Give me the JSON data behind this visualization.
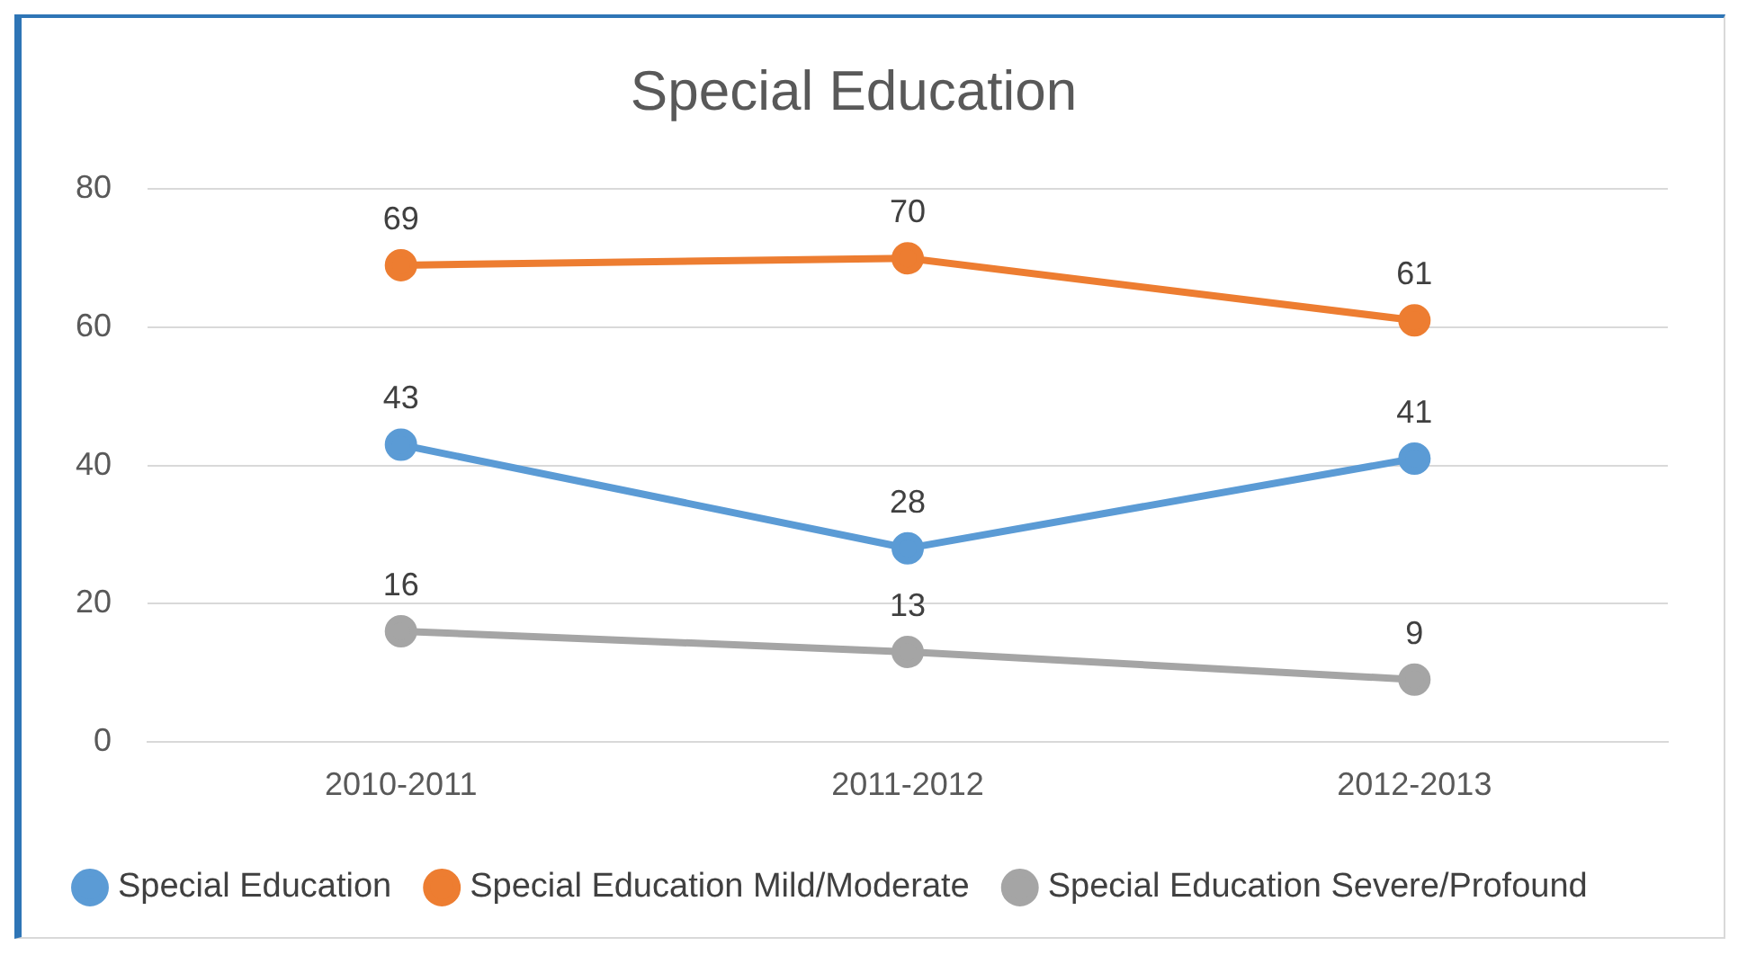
{
  "chart_data": {
    "type": "line",
    "title": "Special Education",
    "categories": [
      "2010-2011",
      "2011-2012",
      "2012-2013"
    ],
    "series": [
      {
        "name": "Special Education",
        "color": "#5b9bd5",
        "values": [
          43,
          28,
          41
        ]
      },
      {
        "name": "Special Education Mild/Moderate",
        "color": "#ed7d31",
        "values": [
          69,
          70,
          61
        ]
      },
      {
        "name": "Special Education Severe/Profound",
        "color": "#a5a5a5",
        "values": [
          16,
          13,
          9
        ]
      }
    ],
    "ylim": [
      0,
      80
    ],
    "yticks": [
      0,
      20,
      40,
      60,
      80
    ],
    "grid": "y",
    "legend": "bottom",
    "marker": "circle",
    "line_style": "solid",
    "data_labels": true
  }
}
